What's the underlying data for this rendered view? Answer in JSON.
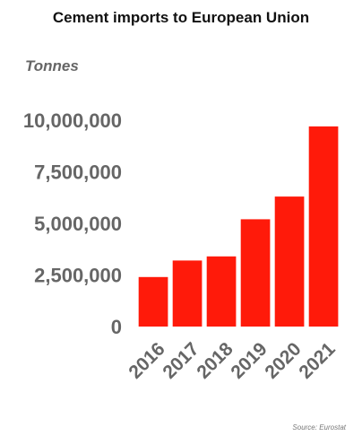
{
  "chart_data": {
    "type": "bar",
    "title": "Cement imports to European Union",
    "ylabel": "Tonnes",
    "xlabel": "",
    "categories": [
      "2016",
      "2017",
      "2018",
      "2019",
      "2020",
      "2021"
    ],
    "values": [
      2400000,
      3200000,
      3400000,
      5200000,
      6300000,
      9700000
    ],
    "ylim": [
      0,
      10000000
    ],
    "yticks": [
      0,
      2500000,
      5000000,
      7500000,
      10000000
    ],
    "ytick_labels": [
      "0",
      "2,500,000",
      "5,000,000",
      "7,500,000",
      "10,000,000"
    ],
    "grid": false,
    "legend": "none",
    "bar_color": "#ff1a0a",
    "source": "Source: Eurostat"
  }
}
